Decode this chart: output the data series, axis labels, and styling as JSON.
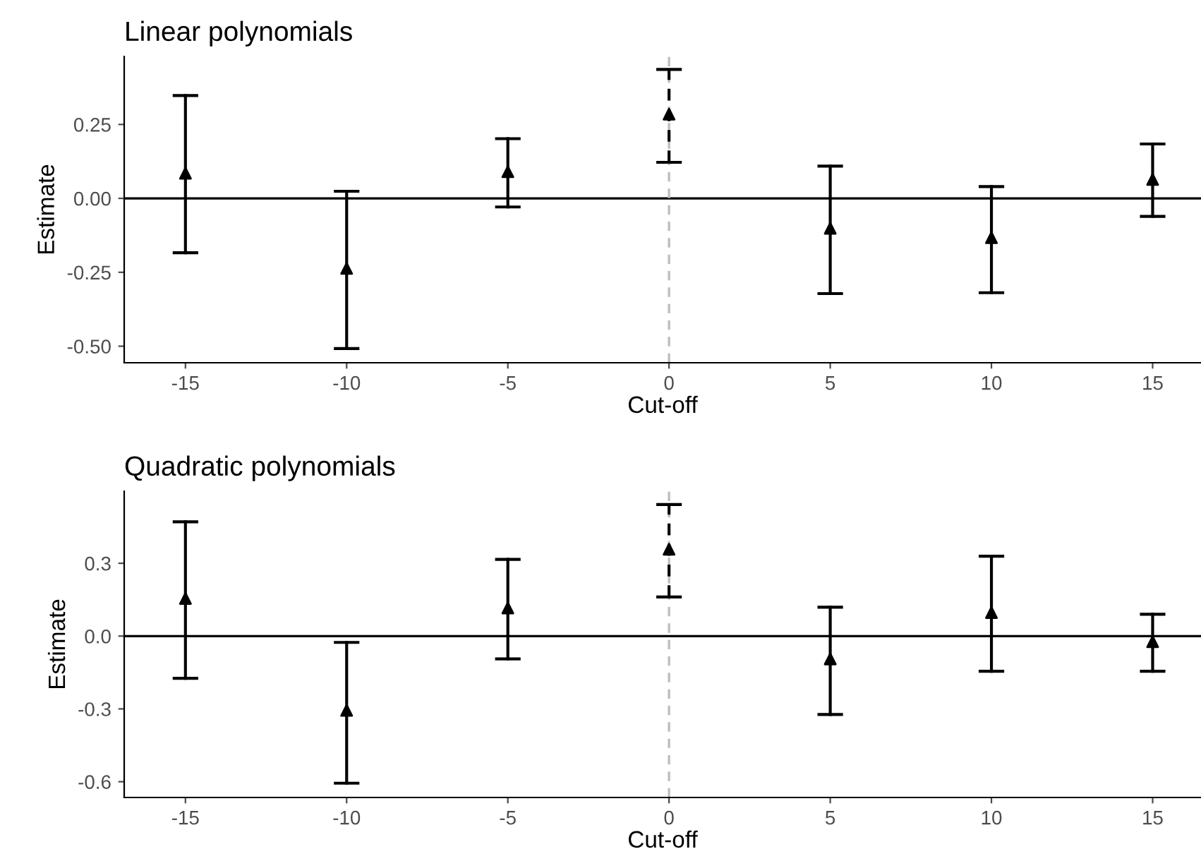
{
  "chart_data": [
    {
      "type": "scatter",
      "title": "Linear polynomials",
      "xlabel": "Cut-off",
      "ylabel": "Estimate",
      "marker": "triangle",
      "grid": false,
      "legend": false,
      "xlim": [
        -16.9,
        16.5
      ],
      "xticks": [
        -15,
        -10,
        -5,
        0,
        5,
        10,
        15
      ],
      "ylim": [
        -0.556,
        0.48
      ],
      "yticks": [
        {
          "value": 0.25,
          "label": "0.25"
        },
        {
          "value": 0,
          "label": "0.00"
        },
        {
          "value": -0.25,
          "label": "-0.25"
        },
        {
          "value": -0.5,
          "label": "-0.50"
        }
      ],
      "series": [
        {
          "color": "#000000",
          "line_style": "solid",
          "x": [
            -15,
            -10,
            -5,
            5,
            10,
            15
          ],
          "values": [
            0.085,
            -0.237,
            0.09,
            -0.101,
            -0.133,
            0.064
          ],
          "errors": [
            [
              -0.184,
              0.348
            ],
            [
              -0.508,
              0.024
            ],
            [
              -0.029,
              0.202
            ],
            [
              -0.322,
              0.109
            ],
            [
              -0.319,
              0.04
            ],
            [
              -0.061,
              0.184
            ]
          ]
        },
        {
          "color": "#000000",
          "line_style": "dashed",
          "x": [
            0
          ],
          "values": [
            0.285
          ],
          "errors": [
            [
              0.122,
              0.436
            ]
          ]
        }
      ],
      "ref_lines": [
        {
          "axis": "y",
          "value": 0,
          "color": "#000000",
          "line_style": "solid"
        },
        {
          "axis": "x",
          "value": 0,
          "color": "#bdbdbd",
          "line_style": "dashed"
        }
      ]
    },
    {
      "type": "scatter",
      "title": "Quadratic polynomials",
      "xlabel": "Cut-off",
      "ylabel": "Estimate",
      "marker": "triangle",
      "grid": false,
      "legend": false,
      "xlim": [
        -16.9,
        16.5
      ],
      "xticks": [
        -15,
        -10,
        -5,
        0,
        5,
        10,
        15
      ],
      "ylim": [
        -0.665,
        0.597
      ],
      "yticks": [
        {
          "value": 0.3,
          "label": "0.3"
        },
        {
          "value": 0,
          "label": "0.0"
        },
        {
          "value": -0.3,
          "label": "-0.3"
        },
        {
          "value": -0.6,
          "label": "-0.6"
        }
      ],
      "series": [
        {
          "color": "#000000",
          "line_style": "solid",
          "x": [
            -15,
            -10,
            -5,
            5,
            10,
            15
          ],
          "values": [
            0.155,
            -0.306,
            0.116,
            -0.094,
            0.097,
            -0.023
          ],
          "errors": [
            [
              -0.174,
              0.471
            ],
            [
              -0.606,
              -0.026
            ],
            [
              -0.094,
              0.316
            ],
            [
              -0.323,
              0.119
            ],
            [
              -0.145,
              0.329
            ],
            [
              -0.145,
              0.09
            ]
          ]
        },
        {
          "color": "#000000",
          "line_style": "dashed",
          "x": [
            0
          ],
          "values": [
            0.358
          ],
          "errors": [
            [
              0.161,
              0.542
            ]
          ]
        }
      ],
      "ref_lines": [
        {
          "axis": "y",
          "value": 0,
          "color": "#000000",
          "line_style": "solid"
        },
        {
          "axis": "x",
          "value": 0,
          "color": "#bdbdbd",
          "line_style": "dashed"
        }
      ]
    }
  ]
}
